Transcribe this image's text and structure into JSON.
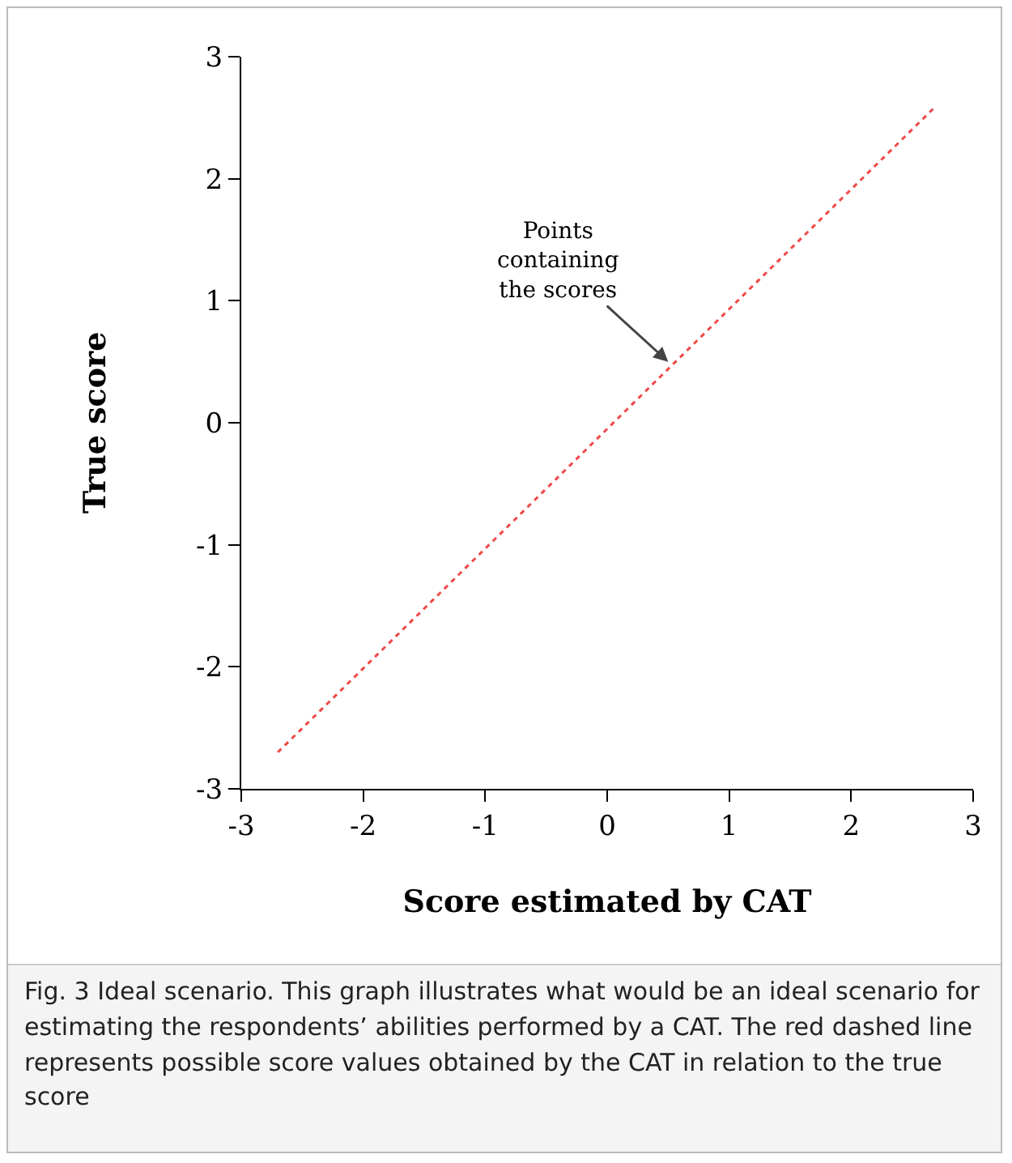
{
  "chart_data": {
    "type": "line",
    "xlabel": "Score estimated by CAT",
    "ylabel": "True score",
    "x": [
      -2.7,
      2.7
    ],
    "series": [
      {
        "color": "#f04848",
        "values": [
          -2.7,
          2.6
        ]
      }
    ],
    "line_style": "dashed",
    "marker": "none",
    "grid": false,
    "xlim": [
      -3,
      3
    ],
    "ylim": [
      -3,
      3
    ],
    "xticks": [
      -3,
      -2,
      -1,
      0,
      1,
      2,
      3
    ],
    "yticks": [
      -3,
      -2,
      -1,
      0,
      1,
      2,
      3
    ],
    "annotations": [
      {
        "text": "Points\ncontaining\nthe scores",
        "x": 0.5,
        "y": 0.5
      },
      "Fig. 3 Ideal scenario. This graph illustrates what would be an ideal scenario for estimating the respondents’ abilities performed by a CAT. The red dashed line represents possible score values obtained by the CAT in relation to the true score"
    ]
  }
}
